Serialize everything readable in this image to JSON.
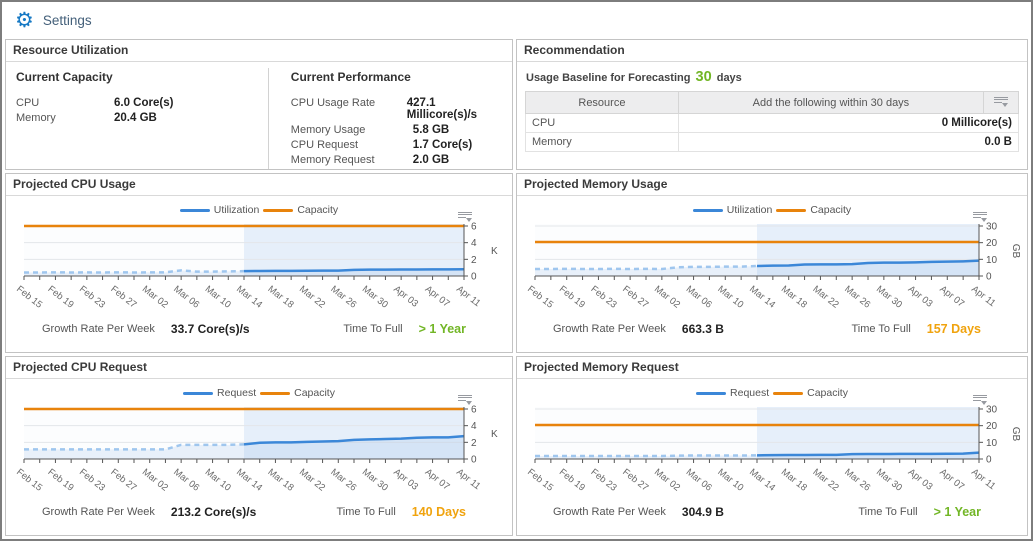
{
  "header": {
    "settings_label": "Settings"
  },
  "colors": {
    "accent_blue": "#1779c4",
    "series_blue": "#3b87d8",
    "series_blue_history": "#9fc6ee",
    "capacity_orange": "#e8830c",
    "good_green": "#72b626",
    "warn_amber": "#f0a30e"
  },
  "resource_utilization": {
    "title": "Resource Utilization",
    "capacity": {
      "title": "Current Capacity",
      "rows": [
        {
          "label": "CPU",
          "value": "6.0 Core(s)"
        },
        {
          "label": "Memory",
          "value": "20.4 GB"
        }
      ]
    },
    "performance": {
      "title": "Current Performance",
      "rows": [
        {
          "label": "CPU Usage Rate",
          "value": "427.1 Millicore(s)/s"
        },
        {
          "label": "Memory Usage",
          "value": "5.8 GB"
        },
        {
          "label": "CPU Request",
          "value": "1.7 Core(s)"
        },
        {
          "label": "Memory Request",
          "value": "2.0 GB"
        }
      ]
    }
  },
  "recommendation": {
    "title": "Recommendation",
    "baseline_prefix": "Usage Baseline for Forecasting",
    "baseline_value": "30",
    "baseline_suffix": "days",
    "table": {
      "columns": [
        "Resource",
        "Add the following within 30 days"
      ],
      "rows": [
        {
          "resource": "CPU",
          "value": "0 Millicore(s)"
        },
        {
          "resource": "Memory",
          "value": "0.0 B"
        }
      ]
    }
  },
  "charts": [
    {
      "title": "Projected CPU Usage",
      "chart_data": {
        "type": "line",
        "legend": [
          "Utilization",
          "Capacity"
        ],
        "y_unit": "K",
        "ylim": [
          0,
          6
        ],
        "yticks": [
          0,
          2,
          4,
          6
        ],
        "x_tick_labels": [
          "Feb 15",
          "Feb 19",
          "Feb 23",
          "Feb 27",
          "Mar 02",
          "Mar 06",
          "Mar 10",
          "Mar 14",
          "Mar 18",
          "Mar 22",
          "Mar 26",
          "Mar 30",
          "Apr 03",
          "Apr 07",
          "Apr 11"
        ],
        "x_span_days": 56,
        "x_label_interval_days": 4,
        "forecast_start_day": 28,
        "capacity_value": 6,
        "series": [
          [
            0,
            0.42
          ],
          [
            2,
            0.42
          ],
          [
            4,
            0.44
          ],
          [
            6,
            0.42
          ],
          [
            8,
            0.43
          ],
          [
            10,
            0.42
          ],
          [
            12,
            0.44
          ],
          [
            14,
            0.42
          ],
          [
            16,
            0.43
          ],
          [
            18,
            0.44
          ],
          [
            20,
            0.68
          ],
          [
            22,
            0.52
          ],
          [
            24,
            0.53
          ],
          [
            26,
            0.55
          ],
          [
            28,
            0.58
          ],
          [
            30,
            0.6
          ],
          [
            32,
            0.62
          ],
          [
            34,
            0.62
          ],
          [
            36,
            0.63
          ],
          [
            38,
            0.64
          ],
          [
            40,
            0.64
          ],
          [
            42,
            0.74
          ],
          [
            44,
            0.77
          ],
          [
            46,
            0.77
          ],
          [
            48,
            0.78
          ],
          [
            50,
            0.78
          ],
          [
            52,
            0.79
          ],
          [
            54,
            0.79
          ],
          [
            56,
            0.81
          ]
        ]
      },
      "stats": {
        "growth_label": "Growth Rate Per Week",
        "growth_value": "33.7 Core(s)/s",
        "ttf_label": "Time To Full",
        "ttf_value": "> 1 Year",
        "ttf_status": "good"
      }
    },
    {
      "title": "Projected Memory Usage",
      "chart_data": {
        "type": "line",
        "legend": [
          "Utilization",
          "Capacity"
        ],
        "y_unit": "GB",
        "ylim": [
          0,
          30
        ],
        "yticks": [
          0,
          10,
          20,
          30
        ],
        "x_tick_labels": [
          "Feb 15",
          "Feb 19",
          "Feb 23",
          "Feb 27",
          "Mar 02",
          "Mar 06",
          "Mar 10",
          "Mar 14",
          "Mar 18",
          "Mar 22",
          "Mar 26",
          "Mar 30",
          "Apr 03",
          "Apr 07",
          "Apr 11"
        ],
        "x_span_days": 56,
        "x_label_interval_days": 4,
        "forecast_start_day": 28,
        "capacity_value": 20.4,
        "series": [
          [
            0,
            4.2
          ],
          [
            2,
            4.2
          ],
          [
            4,
            4.3
          ],
          [
            6,
            4.2
          ],
          [
            8,
            4.2
          ],
          [
            10,
            4.3
          ],
          [
            12,
            4.2
          ],
          [
            14,
            4.3
          ],
          [
            16,
            4.2
          ],
          [
            18,
            5.2
          ],
          [
            20,
            5.5
          ],
          [
            22,
            5.5
          ],
          [
            24,
            5.6
          ],
          [
            26,
            5.6
          ],
          [
            28,
            6.0
          ],
          [
            30,
            6.2
          ],
          [
            32,
            6.3
          ],
          [
            34,
            6.9
          ],
          [
            36,
            7.0
          ],
          [
            38,
            7.0
          ],
          [
            40,
            7.1
          ],
          [
            42,
            7.8
          ],
          [
            44,
            8.0
          ],
          [
            46,
            8.0
          ],
          [
            48,
            8.2
          ],
          [
            50,
            8.5
          ],
          [
            52,
            8.6
          ],
          [
            54,
            8.8
          ],
          [
            56,
            9.2
          ]
        ]
      },
      "stats": {
        "growth_label": "Growth Rate Per Week",
        "growth_value": "663.3 B",
        "ttf_label": "Time To Full",
        "ttf_value": "157 Days",
        "ttf_status": "warn"
      }
    },
    {
      "title": "Projected CPU Request",
      "chart_data": {
        "type": "line",
        "legend": [
          "Request",
          "Capacity"
        ],
        "y_unit": "K",
        "ylim": [
          0,
          6
        ],
        "yticks": [
          0,
          2,
          4,
          6
        ],
        "x_tick_labels": [
          "Feb 15",
          "Feb 19",
          "Feb 23",
          "Feb 27",
          "Mar 02",
          "Mar 06",
          "Mar 10",
          "Mar 14",
          "Mar 18",
          "Mar 22",
          "Mar 26",
          "Mar 30",
          "Apr 03",
          "Apr 07",
          "Apr 11"
        ],
        "x_span_days": 56,
        "x_label_interval_days": 4,
        "forecast_start_day": 28,
        "capacity_value": 6,
        "series": [
          [
            0,
            1.15
          ],
          [
            2,
            1.15
          ],
          [
            4,
            1.15
          ],
          [
            6,
            1.15
          ],
          [
            8,
            1.15
          ],
          [
            10,
            1.15
          ],
          [
            12,
            1.15
          ],
          [
            14,
            1.15
          ],
          [
            16,
            1.15
          ],
          [
            18,
            1.15
          ],
          [
            20,
            1.7
          ],
          [
            22,
            1.7
          ],
          [
            24,
            1.7
          ],
          [
            26,
            1.7
          ],
          [
            28,
            1.75
          ],
          [
            30,
            1.95
          ],
          [
            32,
            2.0
          ],
          [
            34,
            2.0
          ],
          [
            36,
            2.05
          ],
          [
            38,
            2.1
          ],
          [
            40,
            2.15
          ],
          [
            42,
            2.3
          ],
          [
            44,
            2.35
          ],
          [
            46,
            2.4
          ],
          [
            48,
            2.45
          ],
          [
            50,
            2.55
          ],
          [
            52,
            2.6
          ],
          [
            54,
            2.6
          ],
          [
            56,
            2.75
          ]
        ]
      },
      "stats": {
        "growth_label": "Growth Rate Per Week",
        "growth_value": "213.2 Core(s)/s",
        "ttf_label": "Time To Full",
        "ttf_value": "140 Days",
        "ttf_status": "warn"
      }
    },
    {
      "title": "Projected Memory Request",
      "chart_data": {
        "type": "line",
        "legend": [
          "Request",
          "Capacity"
        ],
        "y_unit": "GB",
        "ylim": [
          0,
          30
        ],
        "yticks": [
          0,
          10,
          20,
          30
        ],
        "x_tick_labels": [
          "Feb 15",
          "Feb 19",
          "Feb 23",
          "Feb 27",
          "Mar 02",
          "Mar 06",
          "Mar 10",
          "Mar 14",
          "Mar 18",
          "Mar 22",
          "Mar 26",
          "Mar 30",
          "Apr 03",
          "Apr 07",
          "Apr 11"
        ],
        "x_span_days": 56,
        "x_label_interval_days": 4,
        "forecast_start_day": 28,
        "capacity_value": 20.4,
        "series": [
          [
            0,
            1.8
          ],
          [
            2,
            1.8
          ],
          [
            4,
            1.8
          ],
          [
            6,
            1.8
          ],
          [
            8,
            1.8
          ],
          [
            10,
            1.8
          ],
          [
            12,
            1.8
          ],
          [
            14,
            1.8
          ],
          [
            16,
            1.8
          ],
          [
            18,
            2.0
          ],
          [
            20,
            2.1
          ],
          [
            22,
            2.1
          ],
          [
            24,
            2.1
          ],
          [
            26,
            2.1
          ],
          [
            28,
            2.2
          ],
          [
            30,
            2.3
          ],
          [
            32,
            2.4
          ],
          [
            34,
            2.4
          ],
          [
            36,
            2.45
          ],
          [
            38,
            2.5
          ],
          [
            40,
            2.9
          ],
          [
            42,
            3.0
          ],
          [
            44,
            3.0
          ],
          [
            46,
            3.05
          ],
          [
            48,
            3.1
          ],
          [
            50,
            3.1
          ],
          [
            52,
            3.15
          ],
          [
            54,
            3.2
          ],
          [
            56,
            3.8
          ]
        ]
      },
      "stats": {
        "growth_label": "Growth Rate Per Week",
        "growth_value": "304.9 B",
        "ttf_label": "Time To Full",
        "ttf_value": "> 1 Year",
        "ttf_status": "good"
      }
    }
  ]
}
